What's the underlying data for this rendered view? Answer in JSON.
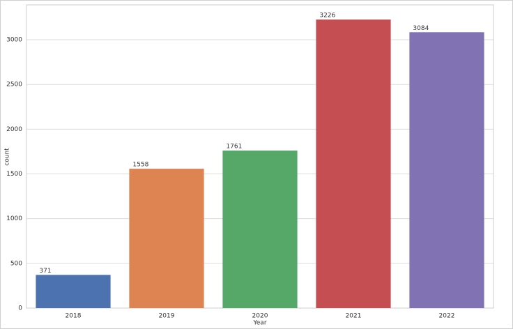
{
  "chart_data": {
    "type": "bar",
    "categories": [
      "2018",
      "2019",
      "2020",
      "2021",
      "2022"
    ],
    "values": [
      371,
      1558,
      1761,
      3226,
      3084
    ],
    "colors": [
      "#4c72b0",
      "#dd8452",
      "#55a868",
      "#c44e52",
      "#8172b3"
    ],
    "x_label": "Year",
    "y_label": "count",
    "ylim": [
      0,
      3390
    ],
    "yticks": [
      0,
      500,
      1000,
      1500,
      2000,
      2500,
      3000
    ],
    "grid": true
  }
}
